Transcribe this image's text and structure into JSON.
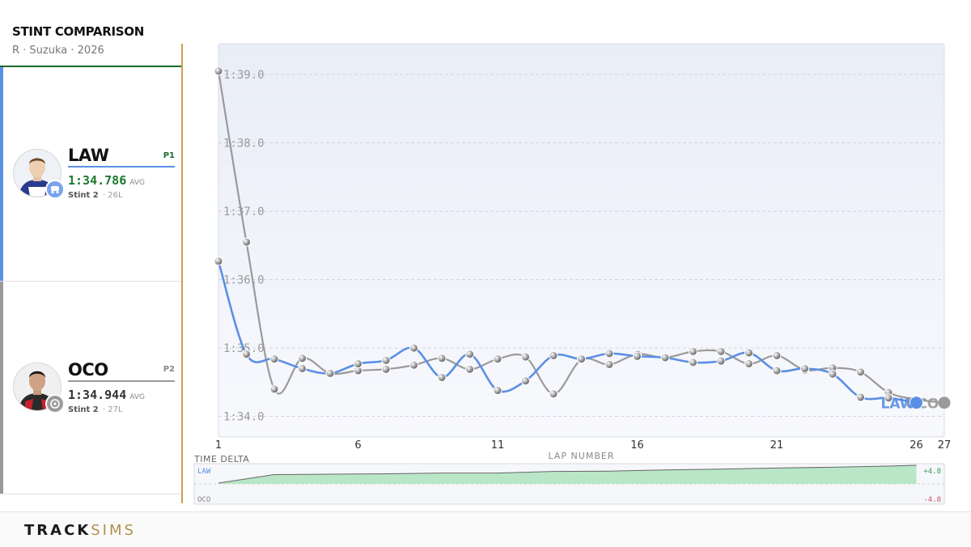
{
  "header": {
    "title": "STINT COMPARISON",
    "subtitle": "R · Suzuka · 2026"
  },
  "drivers": [
    {
      "code": "LAW",
      "position": "P1",
      "avg_time": "1:34.786",
      "avg_label": "AVG",
      "stint": "Stint 2",
      "laps": "· 26L",
      "color": "#5b8fe6",
      "team_color": "#7aa2f0"
    },
    {
      "code": "OCO",
      "position": "P2",
      "avg_time": "1:34.944",
      "avg_label": "AVG",
      "stint": "Stint 2",
      "laps": "· 27L",
      "color": "#9a9a9a",
      "team_color": "#9a9a9a"
    }
  ],
  "chart_data": {
    "type": "line",
    "xlabel": "LAP NUMBER",
    "ylabel": "",
    "x_ticks": [
      1,
      6,
      11,
      16,
      21,
      26,
      27
    ],
    "y_ticks": [
      "1:34.0",
      "1:35.0",
      "1:36.0",
      "1:37.0",
      "1:38.0",
      "1:39.0"
    ],
    "ylim": [
      93.7,
      99.45
    ],
    "xlim": [
      1,
      27
    ],
    "grid": true,
    "series": [
      {
        "name": "LAW",
        "color": "#5b8fe6",
        "x": [
          1,
          2,
          3,
          4,
          5,
          6,
          7,
          8,
          9,
          10,
          11,
          12,
          13,
          14,
          15,
          16,
          17,
          18,
          19,
          20,
          21,
          22,
          23,
          24,
          25,
          26
        ],
        "y": [
          96.27,
          94.91,
          94.84,
          94.7,
          94.63,
          94.77,
          94.82,
          95.0,
          94.57,
          94.91,
          94.38,
          94.52,
          94.89,
          94.84,
          94.92,
          94.88,
          94.86,
          94.79,
          94.81,
          94.93,
          94.67,
          94.7,
          94.62,
          94.28,
          94.27,
          94.2
        ]
      },
      {
        "name": "OCO",
        "color": "#9a9a9a",
        "x": [
          1,
          2,
          3,
          4,
          5,
          6,
          7,
          8,
          9,
          10,
          11,
          12,
          13,
          14,
          15,
          16,
          17,
          18,
          19,
          20,
          21,
          22,
          23,
          24,
          25,
          26,
          27
        ],
        "y": [
          99.05,
          96.55,
          94.4,
          94.85,
          94.63,
          94.67,
          94.69,
          94.75,
          94.85,
          94.69,
          94.84,
          94.87,
          94.33,
          94.83,
          94.76,
          94.91,
          94.86,
          94.95,
          94.95,
          94.77,
          94.89,
          94.68,
          94.71,
          94.65,
          94.35,
          94.25,
          94.2
        ]
      }
    ],
    "delta": {
      "title": "TIME DELTA",
      "top_label": "LAW",
      "bottom_label": "OCO",
      "top_value": "+4.8",
      "bottom_value": "-4.8",
      "x": [
        1,
        3,
        5,
        7,
        9,
        11,
        13,
        15,
        17,
        19,
        21,
        23,
        25,
        26
      ],
      "values": [
        0.2,
        2.4,
        2.5,
        2.6,
        2.8,
        2.8,
        3.2,
        3.3,
        3.6,
        3.8,
        4.1,
        4.3,
        4.6,
        4.8
      ],
      "range": [
        -4.8,
        4.8
      ],
      "fill_color": "#b9e6c7",
      "line_color": "#666666"
    }
  },
  "footer": {
    "brand_part1": "TRACK",
    "brand_part2": "SIMS"
  }
}
